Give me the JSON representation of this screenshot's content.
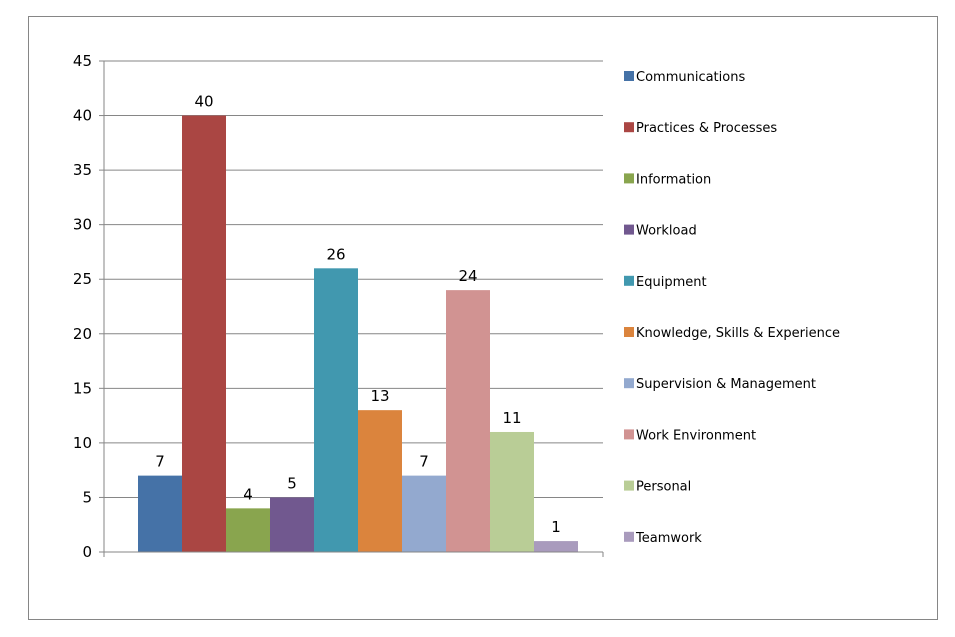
{
  "chart_data": {
    "type": "bar",
    "title": "",
    "xlabel": "",
    "ylabel": "",
    "ylim": [
      0,
      45
    ],
    "yticks": [
      0,
      5,
      10,
      15,
      20,
      25,
      30,
      35,
      40,
      45
    ],
    "grid": true,
    "legend_position": "right",
    "data_labels": true,
    "series": [
      {
        "name": "Communications",
        "value": 7,
        "color": "#4572A7"
      },
      {
        "name": "Practices & Processes",
        "value": 40,
        "color": "#AA4643"
      },
      {
        "name": "Information",
        "value": 4,
        "color": "#89A54E"
      },
      {
        "name": "Workload",
        "value": 5,
        "color": "#71588F"
      },
      {
        "name": "Equipment",
        "value": 26,
        "color": "#4198AF"
      },
      {
        "name": "Knowledge, Skills & Experience",
        "value": 13,
        "color": "#DB843D"
      },
      {
        "name": "Supervision & Management",
        "value": 7,
        "color": "#93A9CF"
      },
      {
        "name": "Work Environment",
        "value": 24,
        "color": "#D19392"
      },
      {
        "name": "Personal",
        "value": 11,
        "color": "#B9CD96"
      },
      {
        "name": "Teamwork",
        "value": 1,
        "color": "#A99BBD"
      }
    ]
  }
}
